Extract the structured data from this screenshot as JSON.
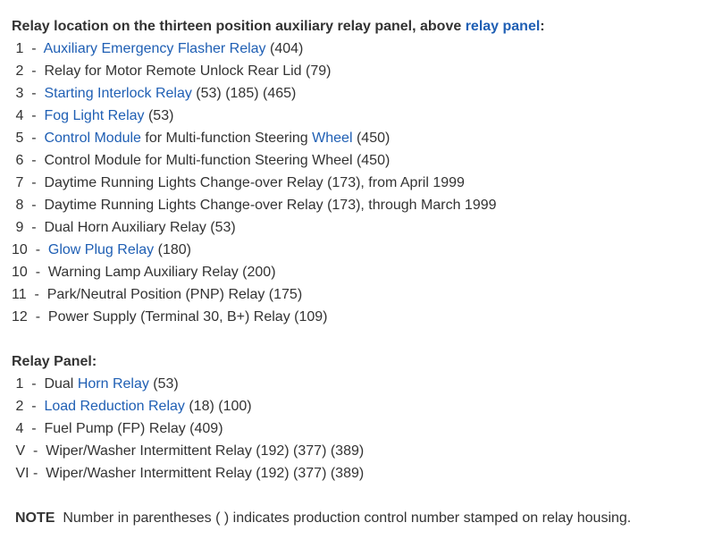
{
  "section1": {
    "heading": "Relay location on the thirteen position auxiliary relay panel, above ",
    "heading_link": "relay panel",
    "heading_end": ":",
    "items": [
      [
        {
          "t": " 1  -  "
        },
        {
          "t": "Auxiliary Emergency Flasher Relay",
          "link": true
        },
        {
          "t": " (404)"
        }
      ],
      [
        {
          "t": " 2  -  Relay for Motor Remote Unlock Rear Lid (79)"
        }
      ],
      [
        {
          "t": " 3  -  "
        },
        {
          "t": "Starting Interlock Relay",
          "link": true
        },
        {
          "t": " (53) (185) (465)"
        }
      ],
      [
        {
          "t": " 4  -  "
        },
        {
          "t": "Fog Light Relay",
          "link": true
        },
        {
          "t": " (53)"
        }
      ],
      [
        {
          "t": " 5  -  "
        },
        {
          "t": "Control Module",
          "link": true
        },
        {
          "t": " for Multi-function Steering "
        },
        {
          "t": "Wheel",
          "link": true
        },
        {
          "t": " (450)"
        }
      ],
      [
        {
          "t": " 6  -  Control Module for Multi-function Steering Wheel (450)"
        }
      ],
      [
        {
          "t": " 7  -  Daytime Running Lights Change-over Relay (173), from April 1999"
        }
      ],
      [
        {
          "t": " 8  -  Daytime Running Lights Change-over Relay (173), through March 1999"
        }
      ],
      [
        {
          "t": " 9  -  Dual Horn Auxiliary Relay (53)"
        }
      ],
      [
        {
          "t": "10  -  "
        },
        {
          "t": "Glow Plug Relay",
          "link": true
        },
        {
          "t": " (180)"
        }
      ],
      [
        {
          "t": "10  -  Warning Lamp Auxiliary Relay (200)"
        }
      ],
      [
        {
          "t": "11  -  Park/Neutral Position (PNP) Relay (175)"
        }
      ],
      [
        {
          "t": "12  -  Power Supply (Terminal 30, B+) Relay (109)"
        }
      ]
    ]
  },
  "section2": {
    "heading": "Relay Panel:",
    "items": [
      [
        {
          "t": " 1  -  Dual "
        },
        {
          "t": "Horn Relay",
          "link": true
        },
        {
          "t": " (53)"
        }
      ],
      [
        {
          "t": " 2  -  "
        },
        {
          "t": "Load Reduction Relay",
          "link": true
        },
        {
          "t": " (18) (100)"
        }
      ],
      [
        {
          "t": " 4  -  Fuel Pump (FP) Relay (409)"
        }
      ],
      [
        {
          "t": " V  -  Wiper/Washer Intermittent Relay (192) (377) (389)"
        }
      ],
      [
        {
          "t": " VI -  Wiper/Washer Intermittent Relay (192) (377) (389)"
        }
      ]
    ]
  },
  "note": {
    "label": "NOTE",
    "text": "  Number in parentheses ( ) indicates production control number stamped on relay housing."
  },
  "colors": {
    "link": "#1f5fb4",
    "text": "#333333"
  }
}
